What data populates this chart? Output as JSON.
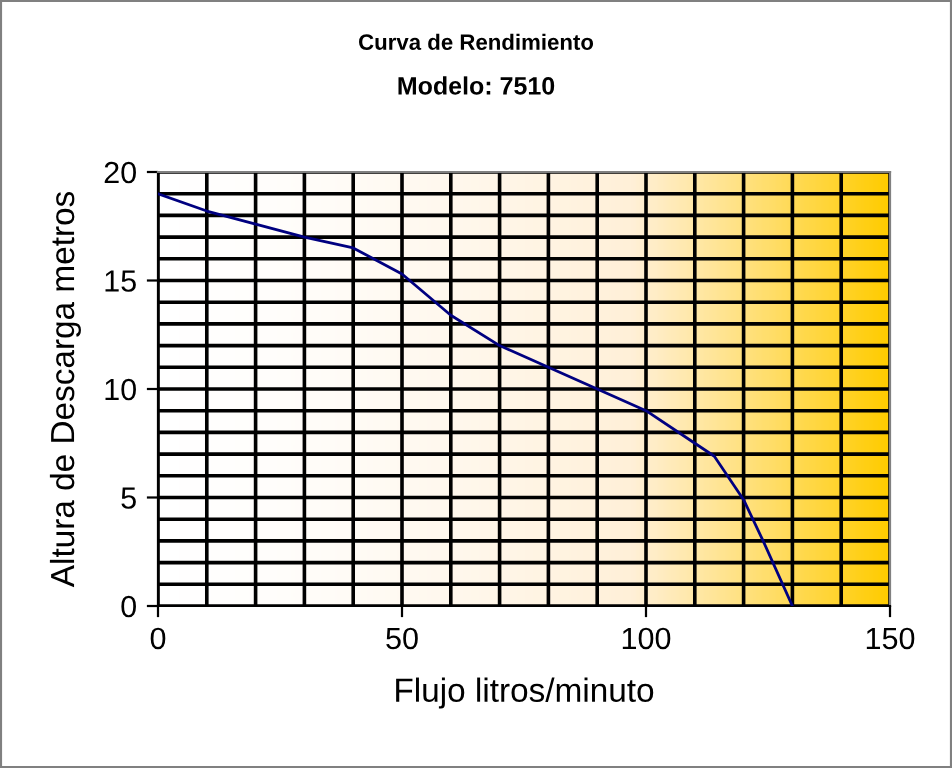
{
  "chart_data": {
    "type": "line",
    "title": "Curva de Rendimiento",
    "subtitle": "Modelo: 7510",
    "xlabel": "Flujo litros/minuto",
    "ylabel": "Altura de Descarga metros",
    "x": [
      0,
      10,
      20,
      30,
      40,
      50,
      60,
      70,
      80,
      90,
      100,
      110,
      114,
      120,
      124,
      130
    ],
    "series": [
      {
        "color": "#000080",
        "values": [
          19,
          18.2,
          17.6,
          17.0,
          16.5,
          15.3,
          13.4,
          12.0,
          11.0,
          10.0,
          9.0,
          7.5,
          6.9,
          4.9,
          3.0,
          0
        ]
      }
    ],
    "xlim": [
      0,
      150
    ],
    "xticks": [
      0,
      {
        "value": 10,
        "label": null
      },
      {
        "value": 20,
        "label": null
      },
      {
        "value": 30,
        "label": null
      },
      {
        "value": 40,
        "label": null
      },
      50,
      {
        "value": 60,
        "label": null
      },
      {
        "value": 70,
        "label": null
      },
      {
        "value": 80,
        "label": null
      },
      {
        "value": 90,
        "label": null
      },
      100,
      {
        "value": 110,
        "label": null
      },
      {
        "value": 120,
        "label": null
      },
      {
        "value": 130,
        "label": null
      },
      {
        "value": 140,
        "label": null
      },
      150
    ],
    "ylim": [
      0,
      20
    ],
    "yticks": [
      0,
      {
        "value": 1,
        "label": null
      },
      {
        "value": 2,
        "label": null
      },
      {
        "value": 3,
        "label": null
      },
      {
        "value": 4,
        "label": null
      },
      5,
      {
        "value": 6,
        "label": null
      },
      {
        "value": 7,
        "label": null
      },
      {
        "value": 8,
        "label": null
      },
      {
        "value": 9,
        "label": null
      },
      10,
      {
        "value": 11,
        "label": null
      },
      {
        "value": 12,
        "label": null
      },
      {
        "value": 13,
        "label": null
      },
      {
        "value": 14,
        "label": null
      },
      15,
      {
        "value": 16,
        "label": null
      },
      {
        "value": 17,
        "label": null
      },
      {
        "value": 18,
        "label": null
      },
      {
        "value": 19,
        "label": null
      },
      20
    ],
    "grid": true,
    "marker": "none",
    "line_style": "solid",
    "legend": false
  }
}
